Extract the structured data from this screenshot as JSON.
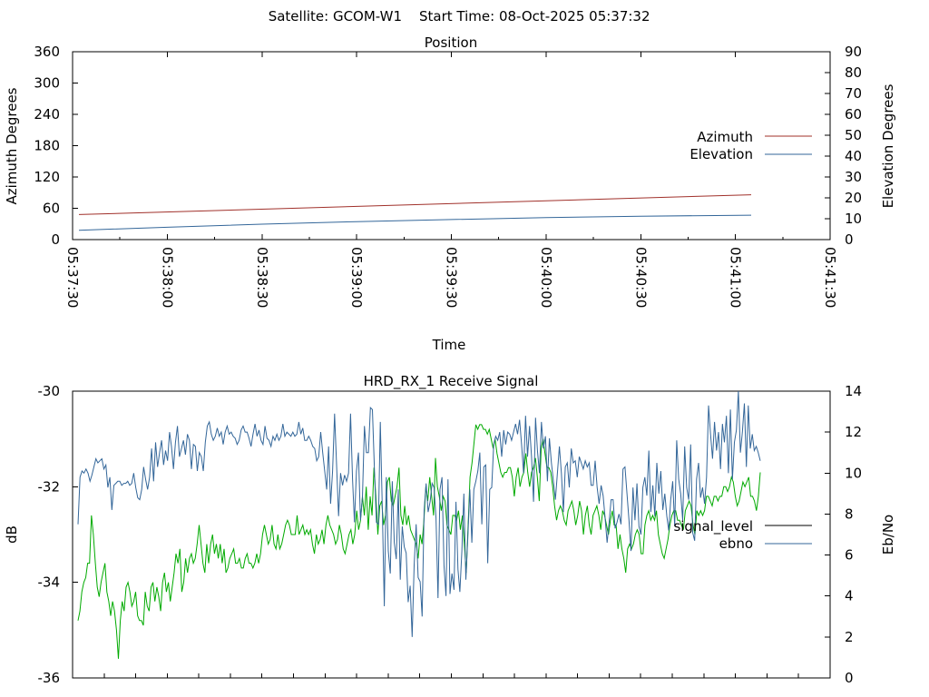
{
  "header": {
    "satellite": "Satellite: GCOM-W1",
    "start_time": "Start Time: 08-Oct-2025 05:37:32"
  },
  "chart_data": [
    {
      "type": "line",
      "title": "Position",
      "xlabel": "Time",
      "ylabel": "Azimuth Degrees",
      "y2label": "Elevation Degrees",
      "x_ticks": [
        "05:37:30",
        "05:38:00",
        "05:38:30",
        "05:39:00",
        "05:39:30",
        "05:40:00",
        "05:40:30",
        "05:41:00",
        "05:41:30"
      ],
      "xlim": [
        "05:37:30",
        "05:41:30"
      ],
      "ylim": [
        0,
        360
      ],
      "y2lim": [
        0,
        90
      ],
      "y_ticks": [
        0,
        60,
        120,
        180,
        240,
        300,
        360
      ],
      "y2_ticks": [
        0,
        10,
        20,
        30,
        40,
        50,
        60,
        70,
        80,
        90
      ],
      "legend_position": "right",
      "series": [
        {
          "name": "Azimuth",
          "axis": "y",
          "color": "#a0302a",
          "x": [
            "05:37:32",
            "05:41:05"
          ],
          "values": [
            48,
            86
          ]
        },
        {
          "name": "Elevation",
          "axis": "y2",
          "color": "#336699",
          "x": [
            "05:37:32",
            "05:38:00",
            "05:38:30",
            "05:39:00",
            "05:39:30",
            "05:40:00",
            "05:40:30",
            "05:41:05"
          ],
          "values": [
            4.5,
            5.9,
            7.4,
            8.6,
            9.6,
            10.5,
            11.2,
            11.7
          ]
        }
      ]
    },
    {
      "type": "line",
      "title": "HRD_RX_1 Receive Signal",
      "xlabel": "",
      "ylabel": "dB",
      "y2label": "Eb/No",
      "ylim": [
        -36,
        -30
      ],
      "y2lim": [
        0,
        14
      ],
      "y_ticks": [
        -36,
        -34,
        -32,
        -30
      ],
      "y2_ticks": [
        0,
        2,
        4,
        6,
        8,
        10,
        12,
        14
      ],
      "legend_position": "right",
      "series": [
        {
          "name": "signal_level",
          "axis": "y",
          "color": "#000000",
          "values": []
        },
        {
          "name": "ebno",
          "axis": "y2",
          "color": "#336699",
          "values": [
            7.5,
            9.8,
            10.1,
            10.0,
            10.2,
            10.0,
            9.6,
            9.9,
            10.3,
            10.7,
            10.5,
            10.6,
            10.7,
            10.2,
            10.4,
            9.3,
            9.8,
            8.2,
            9.4,
            9.5,
            9.6,
            9.6,
            9.4,
            9.5,
            9.5,
            9.6,
            9.4,
            9.5,
            10.0,
            9.3,
            8.8,
            8.7,
            9.2,
            10.3,
            9.7,
            9.2,
            9.8,
            11.2,
            9.6,
            11.5,
            10.3,
            11.0,
            11.6,
            10.4,
            11.1,
            10.6,
            12.0,
            11.3,
            10.2,
            11.5,
            12.3,
            10.8,
            11.2,
            11.6,
            10.9,
            11.9,
            11.6,
            10.2,
            11.4,
            11.3,
            10.1,
            11.0,
            10.8,
            10.1,
            11.5,
            12.3,
            12.5,
            11.9,
            11.6,
            11.8,
            12.2,
            11.8,
            12.0,
            11.4,
            12.0,
            12.3,
            11.9,
            12.0,
            11.8,
            11.7,
            11.4,
            11.6,
            12.1,
            12.3,
            12.0,
            12.0,
            11.7,
            11.3,
            11.9,
            12.4,
            11.8,
            12.1,
            11.6,
            11.4,
            12.3,
            11.7,
            11.6,
            11.3,
            11.8,
            11.6,
            11.9,
            11.6,
            11.8,
            12.4,
            11.8,
            12.0,
            11.9,
            11.8,
            12.0,
            11.8,
            11.9,
            12.5,
            11.9,
            12.2,
            11.6,
            11.6,
            11.8,
            11.6,
            11.3,
            11.2,
            10.6,
            10.8,
            12.0,
            11.0,
            10.1,
            9.2,
            11.3,
            8.5,
            10.1,
            12.9,
            10.4,
            7.9,
            10.0,
            9.4,
            9.9,
            9.6,
            10.0,
            12.9,
            9.7,
            7.6,
            10.1,
            11.0,
            7.7,
            8.8,
            12.3,
            11.0,
            11.0,
            13.2,
            13.1,
            10.2,
            7.6,
            7.5,
            12.5,
            8.3,
            3.5,
            9.8,
            6.2,
            5.1,
            9.6,
            6.6,
            5.8,
            9.2,
            4.8,
            7.4,
            6.4,
            6.1,
            3.7,
            4.5,
            2.0,
            5.5,
            7.5,
            4.9,
            4.7,
            3.0,
            8.2,
            9.5,
            8.1,
            8.6,
            9.5,
            9.3,
            7.8,
            3.9,
            9.2,
            9.8,
            5.5,
            4.0,
            9.7,
            4.1,
            5.1,
            4.3,
            8.6,
            5.3,
            4.2,
            6.2,
            9.0,
            4.8,
            6.9,
            9.2,
            6.6,
            9.2,
            9.6,
            10.1,
            11.0,
            7.5,
            10.3,
            10.4,
            5.6,
            9.2,
            9.3,
            11.4,
            11.8,
            11.6,
            12.0,
            10.8,
            12.1,
            11.4,
            12.0,
            11.9,
            11.6,
            12.0,
            12.4,
            11.9,
            12.6,
            11.4,
            10.0,
            12.8,
            10.8,
            12.3,
            10.8,
            8.6,
            12.7,
            11.1,
            10.0,
            12.5,
            11.2,
            11.8,
            9.6,
            11.7,
            10.5,
            9.6,
            8.7,
            10.0,
            11.3,
            10.0,
            8.1,
            10.3,
            10.5,
            9.3,
            11.2,
            10.5,
            10.6,
            9.8,
            10.8,
            10.5,
            10.2,
            10.6,
            10.3,
            10.5,
            9.4,
            9.4,
            10.6,
            9.3,
            8.5,
            9.4,
            8.9,
            7.8,
            6.6,
            7.6,
            8.7,
            8.7,
            7.3,
            7.6,
            8.0,
            7.5,
            10.2,
            10.3,
            9.0,
            7.7,
            6.2,
            9.3,
            7.7,
            9.5,
            7.4,
            7.0,
            9.3,
            9.8,
            8.9,
            11.1,
            8.1,
            9.4,
            7.9,
            10.5,
            9.0,
            10.1,
            8.2,
            9.0,
            7.9,
            7.2,
            8.7,
            9.6,
            7.4,
            11.6,
            9.7,
            9.0,
            7.7,
            11.3,
            9.3,
            8.7,
            11.4,
            7.1,
            6.7,
            9.7,
            10.5,
            8.8,
            9.3,
            8.5,
            9.8,
            13.3,
            11.9,
            10.7,
            12.5,
            11.1,
            12.0,
            10.2,
            12.4,
            11.5,
            12.8,
            10.0,
            13.1,
            9.7,
            11.5,
            12.1,
            14.0,
            11.0,
            12.0,
            13.4,
            10.3,
            13.3,
            11.2,
            11.9,
            11.1,
            11.3,
            11.0,
            10.6
          ]
        },
        {
          "name": "",
          "axis": "y",
          "color": "#00aa00",
          "values": [
            -34.8,
            -34.6,
            -34.2,
            -34.0,
            -33.9,
            -33.6,
            -33.6,
            -32.6,
            -33.0,
            -33.6,
            -34.1,
            -34.3,
            -34.0,
            -33.8,
            -33.6,
            -34.2,
            -34.4,
            -34.7,
            -34.4,
            -34.6,
            -35.0,
            -35.6,
            -34.8,
            -34.4,
            -34.6,
            -34.1,
            -34.0,
            -34.2,
            -34.5,
            -34.4,
            -34.2,
            -34.7,
            -34.8,
            -34.8,
            -34.9,
            -34.2,
            -34.5,
            -34.6,
            -34.1,
            -34.0,
            -34.4,
            -34.1,
            -34.3,
            -34.6,
            -34.0,
            -33.8,
            -34.2,
            -34.0,
            -34.4,
            -34.1,
            -33.8,
            -33.4,
            -33.6,
            -33.3,
            -34.2,
            -34.0,
            -33.5,
            -33.8,
            -33.5,
            -33.4,
            -33.6,
            -33.5,
            -33.2,
            -32.8,
            -33.2,
            -33.6,
            -33.8,
            -33.2,
            -33.6,
            -33.2,
            -33.0,
            -33.4,
            -33.2,
            -33.5,
            -33.2,
            -33.6,
            -33.3,
            -33.8,
            -33.7,
            -33.5,
            -33.4,
            -33.3,
            -33.6,
            -33.6,
            -33.5,
            -33.7,
            -33.7,
            -33.5,
            -33.4,
            -33.6,
            -33.6,
            -33.7,
            -33.6,
            -33.4,
            -33.6,
            -33.4,
            -33.0,
            -32.8,
            -33.0,
            -33.2,
            -33.1,
            -32.8,
            -33.2,
            -33.3,
            -33.0,
            -33.3,
            -33.2,
            -33.0,
            -32.8,
            -32.7,
            -32.8,
            -33.0,
            -33.0,
            -33.0,
            -32.6,
            -33.0,
            -32.9,
            -32.8,
            -33.0,
            -32.9,
            -33.0,
            -32.9,
            -33.2,
            -33.4,
            -33.0,
            -33.2,
            -33.1,
            -32.9,
            -33.2,
            -32.8,
            -32.6,
            -32.8,
            -32.9,
            -33.0,
            -33.2,
            -33.1,
            -32.8,
            -33.0,
            -33.3,
            -33.4,
            -33.2,
            -33.0,
            -32.9,
            -33.2,
            -33.0,
            -32.5,
            -32.9,
            -32.7,
            -32.2,
            -32.6,
            -32.0,
            -32.9,
            -32.2,
            -32.6,
            -31.6,
            -32.2,
            -33.0,
            -32.4,
            -32.3,
            -32.8,
            -32.6,
            -31.9,
            -31.8,
            -32.3,
            -32.4,
            -32.2,
            -32.0,
            -31.6,
            -32.6,
            -32.8,
            -32.4,
            -32.8,
            -32.6,
            -32.9,
            -33.0,
            -33.1,
            -33.2,
            -33.5,
            -33.0,
            -33.2,
            -32.7,
            -32.0,
            -32.3,
            -31.8,
            -32.2,
            -32.6,
            -31.4,
            -32.0,
            -32.2,
            -32.5,
            -32.2,
            -32.3,
            -32.8,
            -32.9,
            -33.0,
            -32.6,
            -32.6,
            -32.7,
            -32.5,
            -32.9,
            -32.6,
            -33.2,
            -33.8,
            -32.8,
            -31.8,
            -31.5,
            -31.1,
            -30.7,
            -30.8,
            -30.7,
            -30.7,
            -30.8,
            -30.8,
            -30.9,
            -30.8,
            -31.0,
            -31.2,
            -31.0,
            -31.3,
            -31.5,
            -31.7,
            -31.8,
            -31.7,
            -31.7,
            -31.6,
            -31.6,
            -31.8,
            -32.2,
            -31.8,
            -31.6,
            -32.0,
            -31.8,
            -31.7,
            -31.3,
            -31.7,
            -32.0,
            -31.7,
            -31.6,
            -31.4,
            -31.8,
            -32.3,
            -31.2,
            -31.0,
            -31.3,
            -31.6,
            -31.6,
            -31.7,
            -32.0,
            -32.4,
            -32.7,
            -32.5,
            -32.4,
            -32.5,
            -32.7,
            -32.8,
            -32.5,
            -32.4,
            -32.3,
            -32.5,
            -32.8,
            -32.6,
            -32.3,
            -32.5,
            -33.0,
            -32.6,
            -32.4,
            -32.8,
            -33.0,
            -32.6,
            -32.5,
            -32.4,
            -32.6,
            -32.9,
            -32.5,
            -32.6,
            -32.8,
            -33.0,
            -32.7,
            -32.5,
            -32.8,
            -32.8,
            -33.3,
            -33.0,
            -33.3,
            -33.5,
            -33.8,
            -33.3,
            -33.2,
            -33.3,
            -33.2,
            -33.0,
            -32.9,
            -33.0,
            -33.4,
            -33.4,
            -32.8,
            -32.6,
            -32.5,
            -32.7,
            -32.6,
            -32.7,
            -32.5,
            -33.0,
            -33.2,
            -33.4,
            -33.5,
            -33.3,
            -33.1,
            -32.8,
            -32.6,
            -32.5,
            -32.5,
            -32.7,
            -32.7,
            -32.8,
            -32.9,
            -32.5,
            -32.4,
            -32.3,
            -32.4,
            -32.8,
            -33.0,
            -32.5,
            -32.6,
            -32.5,
            -32.6,
            -32.5,
            -32.2,
            -32.2,
            -32.3,
            -32.4,
            -32.2,
            -32.2,
            -32.3,
            -32.2,
            -32.2,
            -32.0,
            -32.0,
            -32.1,
            -32.0,
            -31.8,
            -31.9,
            -32.2,
            -32.4,
            -32.3,
            -32.1,
            -31.9,
            -32.0,
            -31.9,
            -31.8,
            -32.2,
            -32.2,
            -32.3,
            -32.5,
            -32.2,
            -31.7
          ]
        }
      ]
    }
  ]
}
